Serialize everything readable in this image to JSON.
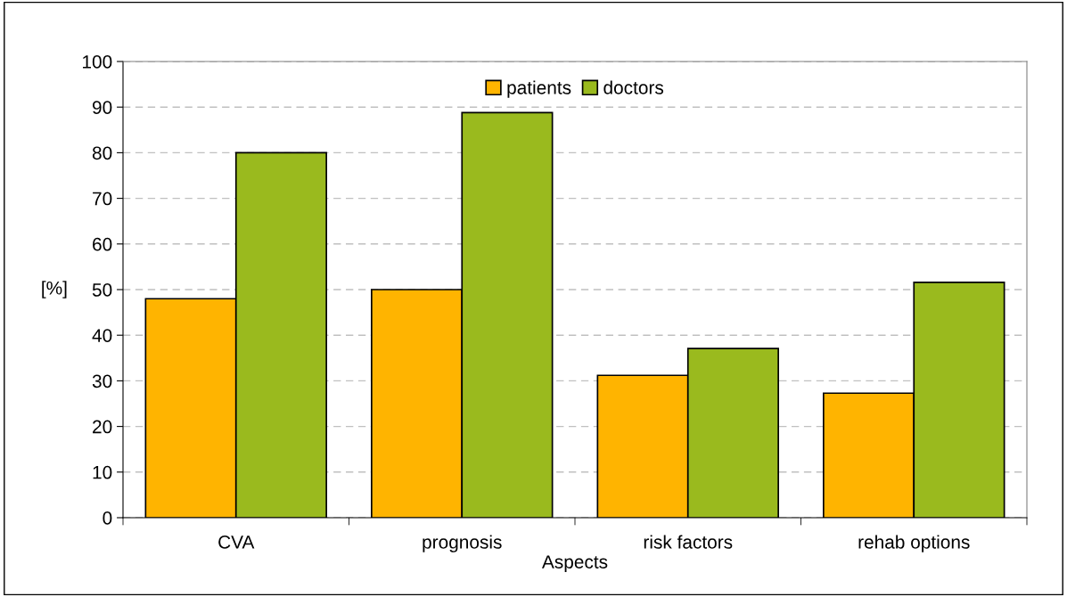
{
  "chart_data": {
    "type": "bar",
    "xlabel": "Aspects",
    "ylabel": "[%]",
    "categories": [
      "CVA",
      "prognosis",
      "risk factors",
      "rehab options"
    ],
    "series": [
      {
        "name": "patients",
        "color": "#ffb400",
        "values": [
          48,
          50,
          31.2,
          27.3
        ]
      },
      {
        "name": "doctors",
        "color": "#9aba1e",
        "values": [
          80,
          88.8,
          37.1,
          51.6
        ]
      }
    ],
    "ylim": [
      0,
      100
    ],
    "yticks": [
      0,
      10,
      20,
      30,
      40,
      50,
      60,
      70,
      80,
      90,
      100
    ],
    "grid": "y",
    "legend": "top"
  }
}
